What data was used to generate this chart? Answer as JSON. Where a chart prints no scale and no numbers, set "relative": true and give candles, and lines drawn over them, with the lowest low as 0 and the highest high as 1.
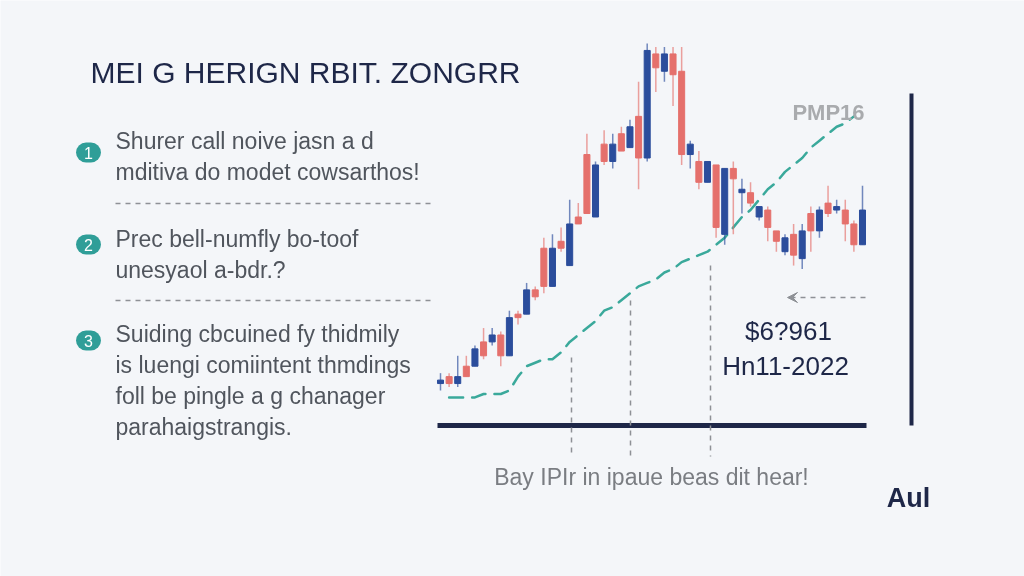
{
  "chart_data": {
    "type": "candlestick",
    "title": "MEI G HERIGN RBIT. ZONGRR",
    "relative": true,
    "categories": [
      null,
      null,
      null,
      null,
      null,
      null,
      null,
      null,
      null,
      null,
      null,
      null,
      null,
      null,
      null,
      null,
      null,
      null,
      null,
      null,
      null,
      null,
      null,
      null,
      null,
      null,
      null,
      null,
      null,
      null,
      null,
      null,
      null,
      null,
      null,
      null,
      null,
      null,
      null,
      null,
      null,
      null,
      null,
      null,
      null,
      null,
      null,
      null,
      null,
      null
    ],
    "ohlc": [
      [
        0.02,
        0.05,
        0,
        0.03
      ],
      [
        0.04,
        0.05,
        0.01,
        0.02
      ],
      [
        0.02,
        0.1,
        0.01,
        0.04
      ],
      [
        0.07,
        0.1,
        0.04,
        0.04
      ],
      [
        0.07,
        0.13,
        0.07,
        0.12
      ],
      [
        0.14,
        0.18,
        0.09,
        0.1
      ],
      [
        0.14,
        0.18,
        0.13,
        0.16
      ],
      [
        0.16,
        0.17,
        0.07,
        0.1
      ],
      [
        0.1,
        0.23,
        0.1,
        0.21
      ],
      [
        0.22,
        0.23,
        0.19,
        0.21
      ],
      [
        0.22,
        0.31,
        0.22,
        0.29
      ],
      [
        0.29,
        0.3,
        0.26,
        0.27
      ],
      [
        0.41,
        0.44,
        0.28,
        0.3
      ],
      [
        0.3,
        0.45,
        0.3,
        0.41
      ],
      [
        0.43,
        0.47,
        0.4,
        0.41
      ],
      [
        0.36,
        0.55,
        0.36,
        0.48
      ],
      [
        0.5,
        0.54,
        0.48,
        0.48
      ],
      [
        0.68,
        0.74,
        0.51,
        0.51
      ],
      [
        0.5,
        0.66,
        0.5,
        0.65
      ],
      [
        0.71,
        0.75,
        0.65,
        0.66
      ],
      [
        0.66,
        0.74,
        0.64,
        0.71
      ],
      [
        0.74,
        0.76,
        0.69,
        0.69
      ],
      [
        0.7,
        0.78,
        0.7,
        0.76
      ],
      [
        0.79,
        0.89,
        0.58,
        0.67
      ],
      [
        0.67,
        1,
        0.66,
        0.98
      ],
      [
        0.97,
        0.99,
        0.86,
        0.93
      ],
      [
        0.92,
        0.99,
        0.89,
        0.97
      ],
      [
        0.97,
        0.99,
        0.82,
        0.91
      ],
      [
        0.92,
        0.99,
        0.65,
        0.68
      ],
      [
        0.68,
        0.72,
        0.64,
        0.71
      ],
      [
        0.66,
        0.69,
        0.58,
        0.6
      ],
      [
        0.6,
        0.66,
        0.6,
        0.66
      ],
      [
        0.65,
        0.65,
        0.44,
        0.47
      ],
      [
        0.45,
        0.64,
        0.42,
        0.64
      ],
      [
        0.64,
        0.66,
        0.45,
        0.61
      ],
      [
        0.57,
        0.61,
        0.51,
        0.58
      ],
      [
        0.57,
        0.6,
        0.53,
        0.54
      ],
      [
        0.5,
        0.53,
        0.49,
        0.53
      ],
      [
        0.52,
        0.53,
        0.43,
        0.47
      ],
      [
        0.46,
        0.46,
        0.4,
        0.43
      ],
      [
        0.4,
        0.45,
        0.39,
        0.44
      ],
      [
        0.45,
        0.48,
        0.36,
        0.39
      ],
      [
        0.38,
        0.48,
        0.35,
        0.46
      ],
      [
        0.51,
        0.53,
        0.4,
        0.46
      ],
      [
        0.46,
        0.53,
        0.44,
        0.52
      ],
      [
        0.54,
        0.59,
        0.5,
        0.51
      ],
      [
        0.52,
        0.55,
        0.51,
        0.53
      ],
      [
        0.52,
        0.55,
        0.43,
        0.48
      ],
      [
        0.48,
        0.49,
        0.4,
        0.42
      ],
      [
        0.42,
        0.59,
        0.42,
        0.52
      ]
    ],
    "colors": [
      "#2b4d9c",
      "#e5706c",
      "#2b4d9c",
      "#e5706c",
      "#2b4d9c",
      "#e5706c",
      "#2b4d9c",
      "#e5706c",
      "#2b4d9c",
      "#e5706c",
      "#2b4d9c",
      "#e5706c",
      "#e5706c",
      "#2b4d9c",
      "#e5706c",
      "#2b4d9c",
      "#e5706c",
      "#e5706c",
      "#2b4d9c",
      "#e5706c",
      "#2b4d9c",
      "#e5706c",
      "#2b4d9c",
      "#e5706c",
      "#2b4d9c",
      "#e5706c",
      "#2b4d9c",
      "#e5706c",
      "#e5706c",
      "#2b4d9c",
      "#e5706c",
      "#2b4d9c",
      "#e5706c",
      "#2b4d9c",
      "#e5706c",
      "#2b4d9c",
      "#e5706c",
      "#2b4d9c",
      "#e5706c",
      "#e5706c",
      "#2b4d9c",
      "#e5706c",
      "#2b4d9c",
      "#e5706c",
      "#2b4d9c",
      "#e5706c",
      "#2b4d9c",
      "#e5706c",
      "#e5706c",
      "#2b4d9c"
    ],
    "series": [
      {
        "type": "line",
        "color": "#3aa99b",
        "line_style": "dashed",
        "values": [
          null,
          -0.02,
          -0.02,
          -0.02,
          -0.02,
          -0.01,
          -0.01,
          -0.01,
          0.0,
          0.04,
          0.07,
          0.08,
          0.09,
          0.09,
          0.11,
          0.14,
          0.16,
          0.18,
          0.2,
          0.23,
          0.24,
          0.26,
          0.28,
          0.3,
          0.31,
          0.32,
          0.34,
          0.35,
          0.37,
          0.38,
          0.39,
          0.4,
          0.42,
          0.44,
          0.47,
          0.5,
          0.52,
          0.55,
          0.58,
          0.6,
          0.63,
          0.65,
          0.67,
          0.7,
          0.72,
          0.74,
          0.76,
          0.77,
          0.79,
          null
        ]
      }
    ],
    "annotations": [
      "1",
      "Shurer call noive jasn a d\nmditiva do modet cowsarthos!",
      "2",
      "Prec bell-numfly bo-toof\nunesyaol a-bdr.?",
      "3",
      "Suiding cbcuined fy thidmily\nis luengi comiintent thmdings\nfoll be pingle a g chanager\nparahaigstrangis.",
      "PMP16",
      "$6?961",
      "Hn11-2022",
      "Bay IPIr in ipaue beas dit hear!",
      "Aul"
    ]
  }
}
